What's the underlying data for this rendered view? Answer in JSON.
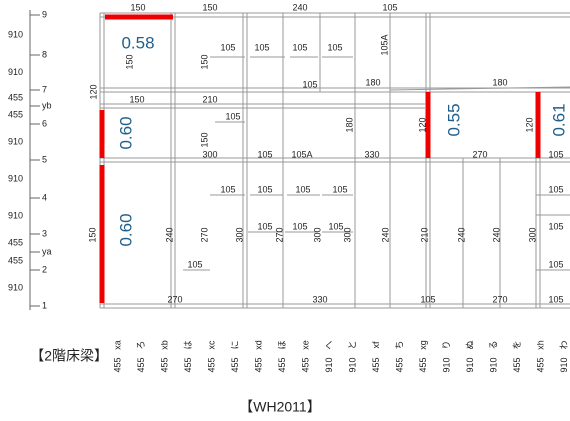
{
  "title": "【2階床梁】",
  "caption": "【WH2011】",
  "rows": [
    "9",
    "8",
    "7",
    "yb",
    "6",
    "5",
    "4",
    "3",
    "ya",
    "2",
    "1"
  ],
  "row_spans": [
    "910",
    "910",
    "455",
    "455",
    "910",
    "910",
    "910",
    "455",
    "455",
    "910"
  ],
  "axes": [
    "xa",
    "ろ",
    "xb",
    "は",
    "xc",
    "に",
    "xd",
    "ほ",
    "xe",
    "へ",
    "と",
    "xf",
    "ち",
    "xg",
    "り",
    "ぬ",
    "る",
    "を",
    "xh",
    "わ"
  ],
  "axis_spans": [
    "455",
    "455",
    "455",
    "455",
    "455",
    "455",
    "455",
    "455",
    "455",
    "910",
    "910",
    "455",
    "455",
    "455",
    "910",
    "910",
    "910",
    "455",
    "455",
    "910"
  ],
  "beams": [
    "150",
    "150",
    "240",
    "105",
    "105",
    "105",
    "105",
    "105",
    "105A",
    "150",
    "150",
    "120",
    "105",
    "180",
    "180",
    "150",
    "210",
    "105",
    "180",
    "300",
    "105",
    "105A",
    "330",
    "270",
    "105",
    "105",
    "105",
    "105",
    "105",
    "105",
    "105",
    "105",
    "105",
    "105",
    "105",
    "270",
    "330",
    "105",
    "270",
    "105",
    "240",
    "270",
    "300",
    "270",
    "300",
    "300",
    "240",
    "210",
    "240",
    "240",
    "300",
    "150",
    "150",
    "120",
    "120",
    "105"
  ],
  "ratios": [
    "0.58",
    "0.60",
    "0.60",
    "0.55",
    "0.61"
  ]
}
